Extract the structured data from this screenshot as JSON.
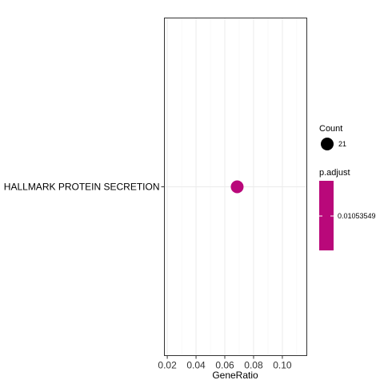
{
  "chart_data": {
    "type": "scatter",
    "title": "",
    "xlabel": "GeneRatio",
    "ylabel": "",
    "xlim": [
      0.018,
      0.117
    ],
    "x_ticks": [
      0.02,
      0.04,
      0.06,
      0.08,
      0.1
    ],
    "x_tick_labels": [
      "0.02",
      "0.04",
      "0.06",
      "0.08",
      "0.10"
    ],
    "categories": [
      "HALLMARK PROTEIN SECRETION"
    ],
    "points": [
      {
        "category": "HALLMARK PROTEIN SECRETION",
        "x": 0.0686,
        "count": 21,
        "p_adjust": 0.01053549
      }
    ],
    "grid": true,
    "legend_position": "right",
    "legend": {
      "size_title": "Count",
      "size_label": "21",
      "color_title": "p.adjust",
      "color_label": "0.01053549"
    },
    "colors": {
      "point": "#b9087a",
      "size_key": "#000000",
      "colorbar": "#b9087a",
      "gridline": "#ebebeb",
      "panel_border": "#333333"
    }
  }
}
